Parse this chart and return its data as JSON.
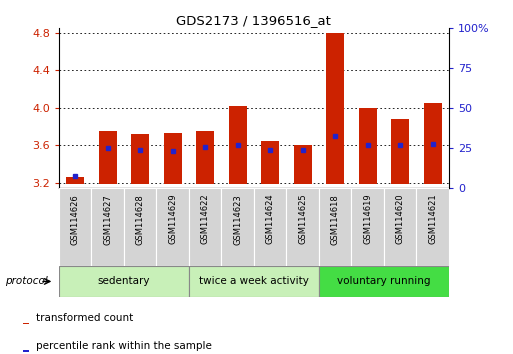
{
  "title": "GDS2173 / 1396516_at",
  "samples": [
    "GSM114626",
    "GSM114627",
    "GSM114628",
    "GSM114629",
    "GSM114622",
    "GSM114623",
    "GSM114624",
    "GSM114625",
    "GSM114618",
    "GSM114619",
    "GSM114620",
    "GSM114621"
  ],
  "red_values": [
    3.26,
    3.75,
    3.72,
    3.73,
    3.75,
    4.02,
    3.65,
    3.6,
    4.8,
    4.0,
    3.88,
    4.05
  ],
  "blue_values": [
    3.27,
    3.57,
    3.55,
    3.54,
    3.58,
    3.6,
    3.55,
    3.55,
    3.7,
    3.6,
    3.6,
    3.62
  ],
  "ylim_left": [
    3.15,
    4.85
  ],
  "ylim_right": [
    0,
    100
  ],
  "yticks_left": [
    3.2,
    3.6,
    4.0,
    4.4,
    4.8
  ],
  "yticks_right": [
    0,
    25,
    50,
    75,
    100
  ],
  "yticklabels_right": [
    "0",
    "25",
    "50",
    "75",
    "100%"
  ],
  "bar_color": "#cc2200",
  "marker_color": "#2222cc",
  "bar_bottom": 3.19,
  "group_labels": [
    "sedentary",
    "twice a week activity",
    "voluntary running"
  ],
  "group_colors_light": "#c8f0b8",
  "group_color_dark": "#44dd44",
  "group_splits": [
    4,
    8
  ],
  "protocol_label": "protocol",
  "legend_red": "transformed count",
  "legend_blue": "percentile rank within the sample",
  "left_axis_color": "#cc2200",
  "right_axis_color": "#2222cc",
  "xtick_bg": "#d4d4d4",
  "spine_color": "#000000"
}
